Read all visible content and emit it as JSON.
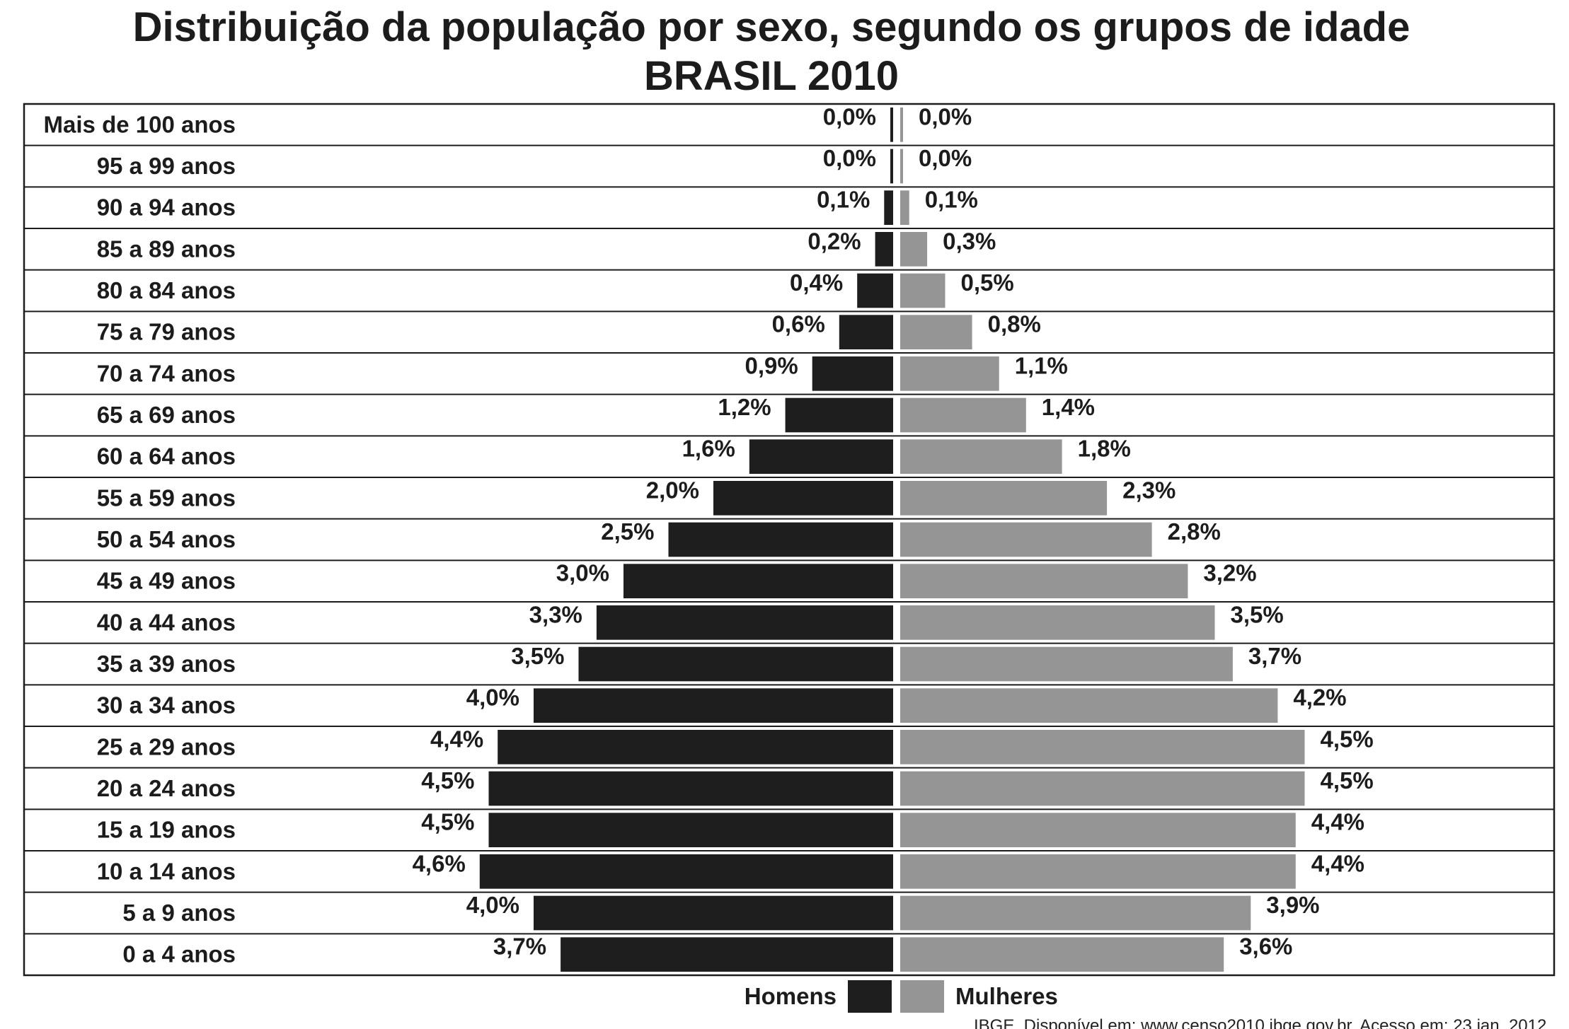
{
  "chart_data": {
    "type": "bar",
    "orientation": "horizontal-population-pyramid",
    "title": "Distribuição da população por sexo, segundo os grupos de idade",
    "subtitle": "BRASIL 2010",
    "categories": [
      "Mais de 100 anos",
      "95 a 99 anos",
      "90 a 94 anos",
      "85 a 89 anos",
      "80 a 84 anos",
      "75 a 79 anos",
      "70 a 74 anos",
      "65 a 69 anos",
      "60 a 64 anos",
      "55 a 59 anos",
      "50 a 54 anos",
      "45 a 49 anos",
      "40 a 44 anos",
      "35 a 39 anos",
      "30 a 34 anos",
      "25 a 29 anos",
      "20 a 24 anos",
      "15 a 19 anos",
      "10 a 14 anos",
      "5 a 9 anos",
      "0 a 4 anos"
    ],
    "series": [
      {
        "name": "Homens",
        "color": "#1e1e1e",
        "values": [
          0.0,
          0.0,
          0.1,
          0.2,
          0.4,
          0.6,
          0.9,
          1.2,
          1.6,
          2.0,
          2.5,
          3.0,
          3.3,
          3.5,
          4.0,
          4.4,
          4.5,
          4.5,
          4.6,
          4.0,
          3.7
        ],
        "labels": [
          "0,0%",
          "0,0%",
          "0,1%",
          "0,2%",
          "0,4%",
          "0,6%",
          "0,9%",
          "1,2%",
          "1,6%",
          "2,0%",
          "2,5%",
          "3,0%",
          "3,3%",
          "3,5%",
          "4,0%",
          "4,4%",
          "4,5%",
          "4,5%",
          "4,6%",
          "4,0%",
          "3,7%"
        ]
      },
      {
        "name": "Mulheres",
        "color": "#959595",
        "values": [
          0.0,
          0.0,
          0.1,
          0.3,
          0.5,
          0.8,
          1.1,
          1.4,
          1.8,
          2.3,
          2.8,
          3.2,
          3.5,
          3.7,
          4.2,
          4.5,
          4.5,
          4.4,
          4.4,
          3.9,
          3.6
        ],
        "labels": [
          "0,0%",
          "0,0%",
          "0,1%",
          "0,3%",
          "0,5%",
          "0,8%",
          "1,1%",
          "1,4%",
          "1,8%",
          "2,3%",
          "2,8%",
          "3,2%",
          "3,5%",
          "3,7%",
          "4,2%",
          "4,5%",
          "4,5%",
          "4,4%",
          "4,4%",
          "3,9%",
          "3,6%"
        ]
      }
    ],
    "legend": [
      "Homens",
      "Mulheres"
    ],
    "legend_position": "bottom-center",
    "grid": false,
    "source": "IBGE. Disponível em: www.censo2010.ibge.gov.br. Acesso em: 23 jan. 2012."
  }
}
